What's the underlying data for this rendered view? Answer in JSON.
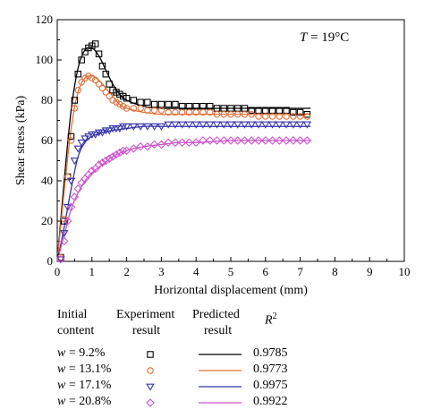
{
  "chart_data": {
    "type": "scatter",
    "annotation": {
      "var": "T",
      "rest": " = 19°C"
    },
    "xlabel": "Horizontal displacement (mm)",
    "ylabel": "Shear stress (kPa)",
    "xlim": [
      0,
      10
    ],
    "ylim": [
      0,
      120
    ],
    "xticks": [
      "0",
      "1",
      "2",
      "3",
      "4",
      "5",
      "6",
      "7",
      "8",
      "9",
      "10"
    ],
    "yticks": [
      "0",
      "20",
      "40",
      "60",
      "80",
      "100",
      "120"
    ],
    "grid": false,
    "series": [
      {
        "name": "w = 9.2%",
        "marker": "square",
        "color": "#000000",
        "x": [
          0.1,
          0.2,
          0.3,
          0.4,
          0.5,
          0.6,
          0.7,
          0.8,
          0.9,
          1.0,
          1.1,
          1.2,
          1.3,
          1.4,
          1.5,
          1.6,
          1.7,
          1.8,
          1.9,
          2.0,
          2.2,
          2.4,
          2.6,
          2.8,
          3.0,
          3.2,
          3.4,
          3.6,
          3.8,
          4.0,
          4.2,
          4.4,
          4.6,
          4.8,
          5.0,
          5.2,
          5.4,
          5.6,
          5.8,
          6.0,
          6.2,
          6.4,
          6.6,
          6.8,
          7.0,
          7.2
        ],
        "y": [
          2,
          20,
          42,
          62,
          80,
          93,
          100,
          104,
          106,
          107,
          108,
          103,
          97,
          93,
          88,
          85,
          84,
          83,
          82,
          81,
          80,
          79,
          79,
          78,
          78,
          78,
          78,
          77,
          77,
          77,
          77,
          77,
          76,
          76,
          76,
          76,
          76,
          75,
          75,
          75,
          75,
          75,
          75,
          74,
          74,
          73
        ],
        "fit_x": [
          0,
          0.2,
          0.4,
          0.6,
          0.8,
          1.0,
          1.2,
          1.4,
          1.6,
          1.8,
          2.0,
          2.5,
          3.0,
          3.5,
          4.0,
          5.0,
          6.0,
          7.0,
          7.3
        ],
        "fit_y": [
          0,
          40,
          75,
          96,
          105,
          106,
          102,
          95,
          88,
          83,
          80,
          77,
          76,
          76,
          76,
          76,
          76,
          76,
          76
        ],
        "r2": "0.9785"
      },
      {
        "name": "w = 13.1%",
        "marker": "circle",
        "color": "#e0703a",
        "x": [
          0.1,
          0.2,
          0.3,
          0.4,
          0.5,
          0.6,
          0.7,
          0.8,
          0.9,
          1.0,
          1.1,
          1.2,
          1.3,
          1.4,
          1.5,
          1.6,
          1.7,
          1.8,
          1.9,
          2.0,
          2.2,
          2.4,
          2.6,
          2.8,
          3.0,
          3.2,
          3.4,
          3.6,
          3.8,
          4.0,
          4.2,
          4.4,
          4.6,
          4.8,
          5.0,
          5.2,
          5.4,
          5.6,
          5.8,
          6.0,
          6.2,
          6.4,
          6.6,
          6.8,
          7.0,
          7.2
        ],
        "y": [
          2,
          21,
          42,
          60,
          76,
          85,
          89,
          91,
          92,
          91,
          90,
          88,
          86,
          84,
          82,
          80,
          79,
          78,
          77,
          76,
          76,
          76,
          75,
          75,
          75,
          74,
          74,
          74,
          74,
          74,
          74,
          74,
          73,
          73,
          73,
          73,
          73,
          73,
          72,
          72,
          72,
          72,
          72,
          72,
          72,
          72
        ],
        "fit_x": [
          0,
          0.2,
          0.4,
          0.6,
          0.8,
          1.0,
          1.2,
          1.4,
          1.6,
          1.8,
          2.0,
          2.5,
          3.0,
          3.5,
          4.0,
          5.0,
          6.0,
          7.0,
          7.3
        ],
        "fit_y": [
          0,
          35,
          66,
          84,
          91,
          92,
          90,
          86,
          82,
          78,
          76,
          74,
          73,
          73,
          73,
          73,
          73,
          73,
          73
        ],
        "r2": "0.9773"
      },
      {
        "name": "w = 17.1%",
        "marker": "triangle-down",
        "color": "#3333aa",
        "x": [
          0.1,
          0.2,
          0.3,
          0.4,
          0.5,
          0.6,
          0.7,
          0.8,
          0.9,
          1.0,
          1.1,
          1.2,
          1.3,
          1.4,
          1.5,
          1.6,
          1.7,
          1.8,
          1.9,
          2.0,
          2.2,
          2.4,
          2.6,
          2.8,
          3.0,
          3.2,
          3.4,
          3.6,
          3.8,
          4.0,
          4.2,
          4.4,
          4.6,
          4.8,
          5.0,
          5.2,
          5.4,
          5.6,
          5.8,
          6.0,
          6.2,
          6.4,
          6.6,
          6.8,
          7.0,
          7.2
        ],
        "y": [
          1,
          14,
          27,
          40,
          50,
          56,
          59,
          61,
          62,
          63,
          63,
          64,
          64,
          65,
          65,
          66,
          66,
          66,
          67,
          67,
          67,
          67,
          67,
          67,
          67,
          68,
          68,
          68,
          68,
          68,
          68,
          68,
          68,
          68,
          68,
          68,
          68,
          68,
          68,
          68,
          68,
          68,
          68,
          68,
          68,
          68
        ],
        "fit_x": [
          0,
          0.2,
          0.4,
          0.6,
          0.8,
          1.0,
          1.3,
          1.6,
          2.0,
          2.5,
          3.0,
          4.0,
          5.0,
          6.0,
          7.0,
          7.3
        ],
        "fit_y": [
          0,
          17,
          36,
          52,
          59,
          62,
          64,
          65,
          66,
          67,
          67,
          67,
          67,
          67,
          67,
          67
        ],
        "r2": "0.9975"
      },
      {
        "name": "w = 20.8%",
        "marker": "diamond",
        "color": "#cc55cc",
        "x": [
          0.1,
          0.2,
          0.3,
          0.4,
          0.5,
          0.6,
          0.7,
          0.8,
          0.9,
          1.0,
          1.1,
          1.2,
          1.3,
          1.4,
          1.5,
          1.6,
          1.7,
          1.8,
          1.9,
          2.0,
          2.2,
          2.4,
          2.6,
          2.8,
          3.0,
          3.2,
          3.4,
          3.6,
          3.8,
          4.0,
          4.2,
          4.4,
          4.6,
          4.8,
          5.0,
          5.2,
          5.4,
          5.6,
          5.8,
          6.0,
          6.2,
          6.4,
          6.6,
          6.8,
          7.0,
          7.2
        ],
        "y": [
          1,
          10,
          20,
          27,
          32,
          36,
          39,
          41,
          43,
          45,
          46,
          48,
          49,
          50,
          51,
          52,
          53,
          54,
          55,
          55,
          56,
          57,
          57,
          58,
          58,
          59,
          59,
          59,
          59,
          59,
          60,
          60,
          60,
          60,
          60,
          60,
          60,
          60,
          60,
          60,
          60,
          60,
          60,
          60,
          60,
          60
        ],
        "fit_x": [
          0,
          0.2,
          0.4,
          0.6,
          0.8,
          1.0,
          1.3,
          1.6,
          2.0,
          2.5,
          3.0,
          3.5,
          4.0,
          5.0,
          6.0,
          7.0,
          7.3
        ],
        "fit_y": [
          0,
          13,
          26,
          34,
          40,
          44,
          48,
          52,
          55,
          57,
          58,
          59,
          59,
          60,
          60,
          60,
          60
        ],
        "r2": "0.9922"
      }
    ]
  },
  "legend": {
    "header_col1": [
      "Initial",
      "content"
    ],
    "header_col2": [
      "Experiment",
      "result"
    ],
    "header_col3": [
      "Predicted",
      "result"
    ],
    "header_col4_var": "R",
    "header_col4_sup": "2",
    "rows": [
      {
        "var": "w",
        "value": " = 9.2%"
      },
      {
        "var": "w",
        "value": " = 13.1%"
      },
      {
        "var": "w",
        "value": " = 17.1%"
      },
      {
        "var": "w",
        "value": " = 20.8%"
      }
    ]
  }
}
